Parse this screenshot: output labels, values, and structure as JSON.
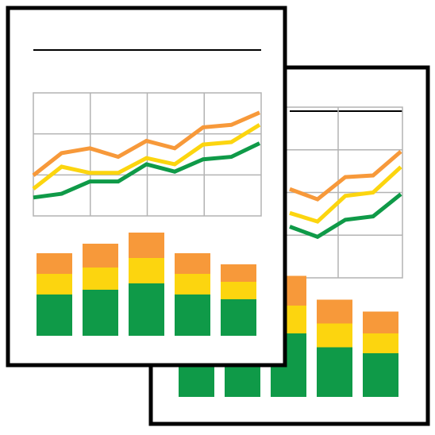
{
  "colors": {
    "paper": "#ffffff",
    "border": "#000000",
    "grid": "#b3b3b3",
    "orange": "#f7993a",
    "yellow": "#fcd50f",
    "green": "#0f9a48"
  },
  "icon": "stacked-report-pages-icon",
  "pages": [
    {
      "name": "back-report-page",
      "line_series": [
        {
          "name": "orange",
          "values": [
            5.2,
            4.6,
            5.9,
            6.0,
            7.4
          ]
        },
        {
          "name": "yellow",
          "values": [
            3.8,
            3.3,
            4.8,
            5.0,
            6.5
          ]
        },
        {
          "name": "green",
          "values": [
            3.0,
            2.4,
            3.4,
            3.6,
            4.9
          ]
        }
      ],
      "bars": [
        {
          "green": 2.5,
          "yellow": 1.2,
          "orange": 1.3
        },
        {
          "green": 2.5,
          "yellow": 1.2,
          "orange": 1.3
        },
        {
          "green": 3.2,
          "yellow": 1.4,
          "orange": 1.5
        },
        {
          "green": 2.5,
          "yellow": 1.2,
          "orange": 1.2
        },
        {
          "green": 2.2,
          "yellow": 1.0,
          "orange": 1.1
        }
      ]
    },
    {
      "name": "front-report-page",
      "line_series": [
        {
          "name": "orange",
          "values": [
            3.3,
            5.1,
            5.5,
            4.8,
            6.1,
            5.5,
            7.2,
            7.4,
            8.4
          ]
        },
        {
          "name": "yellow",
          "values": [
            2.2,
            4.0,
            3.5,
            3.5,
            4.7,
            4.2,
            5.8,
            6.0,
            7.4
          ]
        },
        {
          "name": "green",
          "values": [
            1.5,
            1.8,
            2.8,
            2.8,
            4.2,
            3.6,
            4.6,
            4.8,
            5.9
          ]
        }
      ],
      "bars": [
        {
          "green": 2.6,
          "yellow": 1.3,
          "orange": 1.3
        },
        {
          "green": 2.9,
          "yellow": 1.4,
          "orange": 1.5
        },
        {
          "green": 3.3,
          "yellow": 1.6,
          "orange": 1.6
        },
        {
          "green": 2.6,
          "yellow": 1.3,
          "orange": 1.3
        },
        {
          "green": 2.3,
          "yellow": 1.1,
          "orange": 1.1
        }
      ]
    }
  ]
}
